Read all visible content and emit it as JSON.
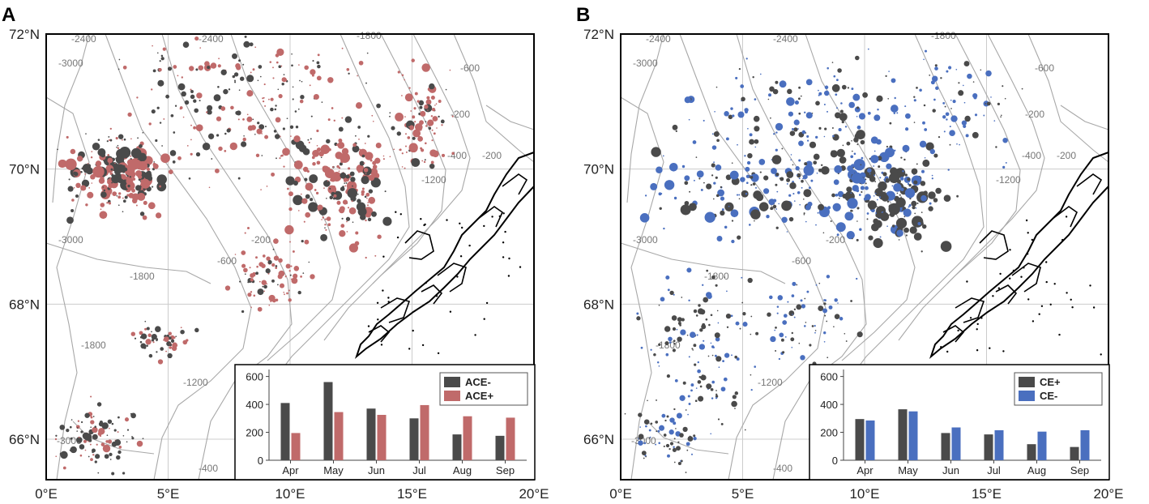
{
  "colors": {
    "dark": "#4a4a4a",
    "red": "#c06a6a",
    "blue": "#4a6fbf",
    "contour": "#a8a8a8",
    "grid": "#cccccc",
    "coast": "#000000",
    "frame": "#000000"
  },
  "map_axes": {
    "x_ticks": [
      "0°E",
      "5°E",
      "10°E",
      "15°E",
      "20°E"
    ],
    "y_ticks": [
      "72°N",
      "70°N",
      "68°N",
      "66°N"
    ]
  },
  "contour_labels": [
    "-2400",
    "-1800",
    "-3000",
    "-600",
    "-200",
    "-400",
    "-1200",
    "-200",
    "-2400",
    "-1800",
    "-600",
    "-200",
    "-3000",
    "-1800",
    "-1200",
    "-3000",
    "-400"
  ],
  "chart_data": [
    {
      "type": "bar",
      "panel": "A",
      "panel_label": "A",
      "title": "",
      "xlabel": "",
      "ylabel": "",
      "categories": [
        "Apr",
        "May",
        "Jun",
        "Jul",
        "Aug",
        "Sep"
      ],
      "series": [
        {
          "name": "ACE-",
          "values": [
            410,
            560,
            370,
            300,
            185,
            175
          ]
        },
        {
          "name": "ACE+",
          "values": [
            195,
            345,
            325,
            395,
            315,
            305
          ]
        }
      ],
      "ylim": [
        0,
        650
      ],
      "yticks": [
        "0",
        "200",
        "400",
        "600"
      ],
      "legend": "top-right"
    },
    {
      "type": "bar",
      "panel": "B",
      "panel_label": "B",
      "title": "",
      "xlabel": "",
      "ylabel": "",
      "categories": [
        "Apr",
        "May",
        "Jun",
        "Jul",
        "Aug",
        "Sep"
      ],
      "series": [
        {
          "name": "CE+",
          "values": [
            295,
            365,
            195,
            185,
            115,
            95
          ]
        },
        {
          "name": "CE-",
          "values": [
            285,
            350,
            235,
            215,
            205,
            215
          ]
        }
      ],
      "ylim": [
        0,
        650
      ],
      "yticks": [
        "0",
        "200",
        "400",
        "600"
      ],
      "legend": "top-right"
    }
  ]
}
